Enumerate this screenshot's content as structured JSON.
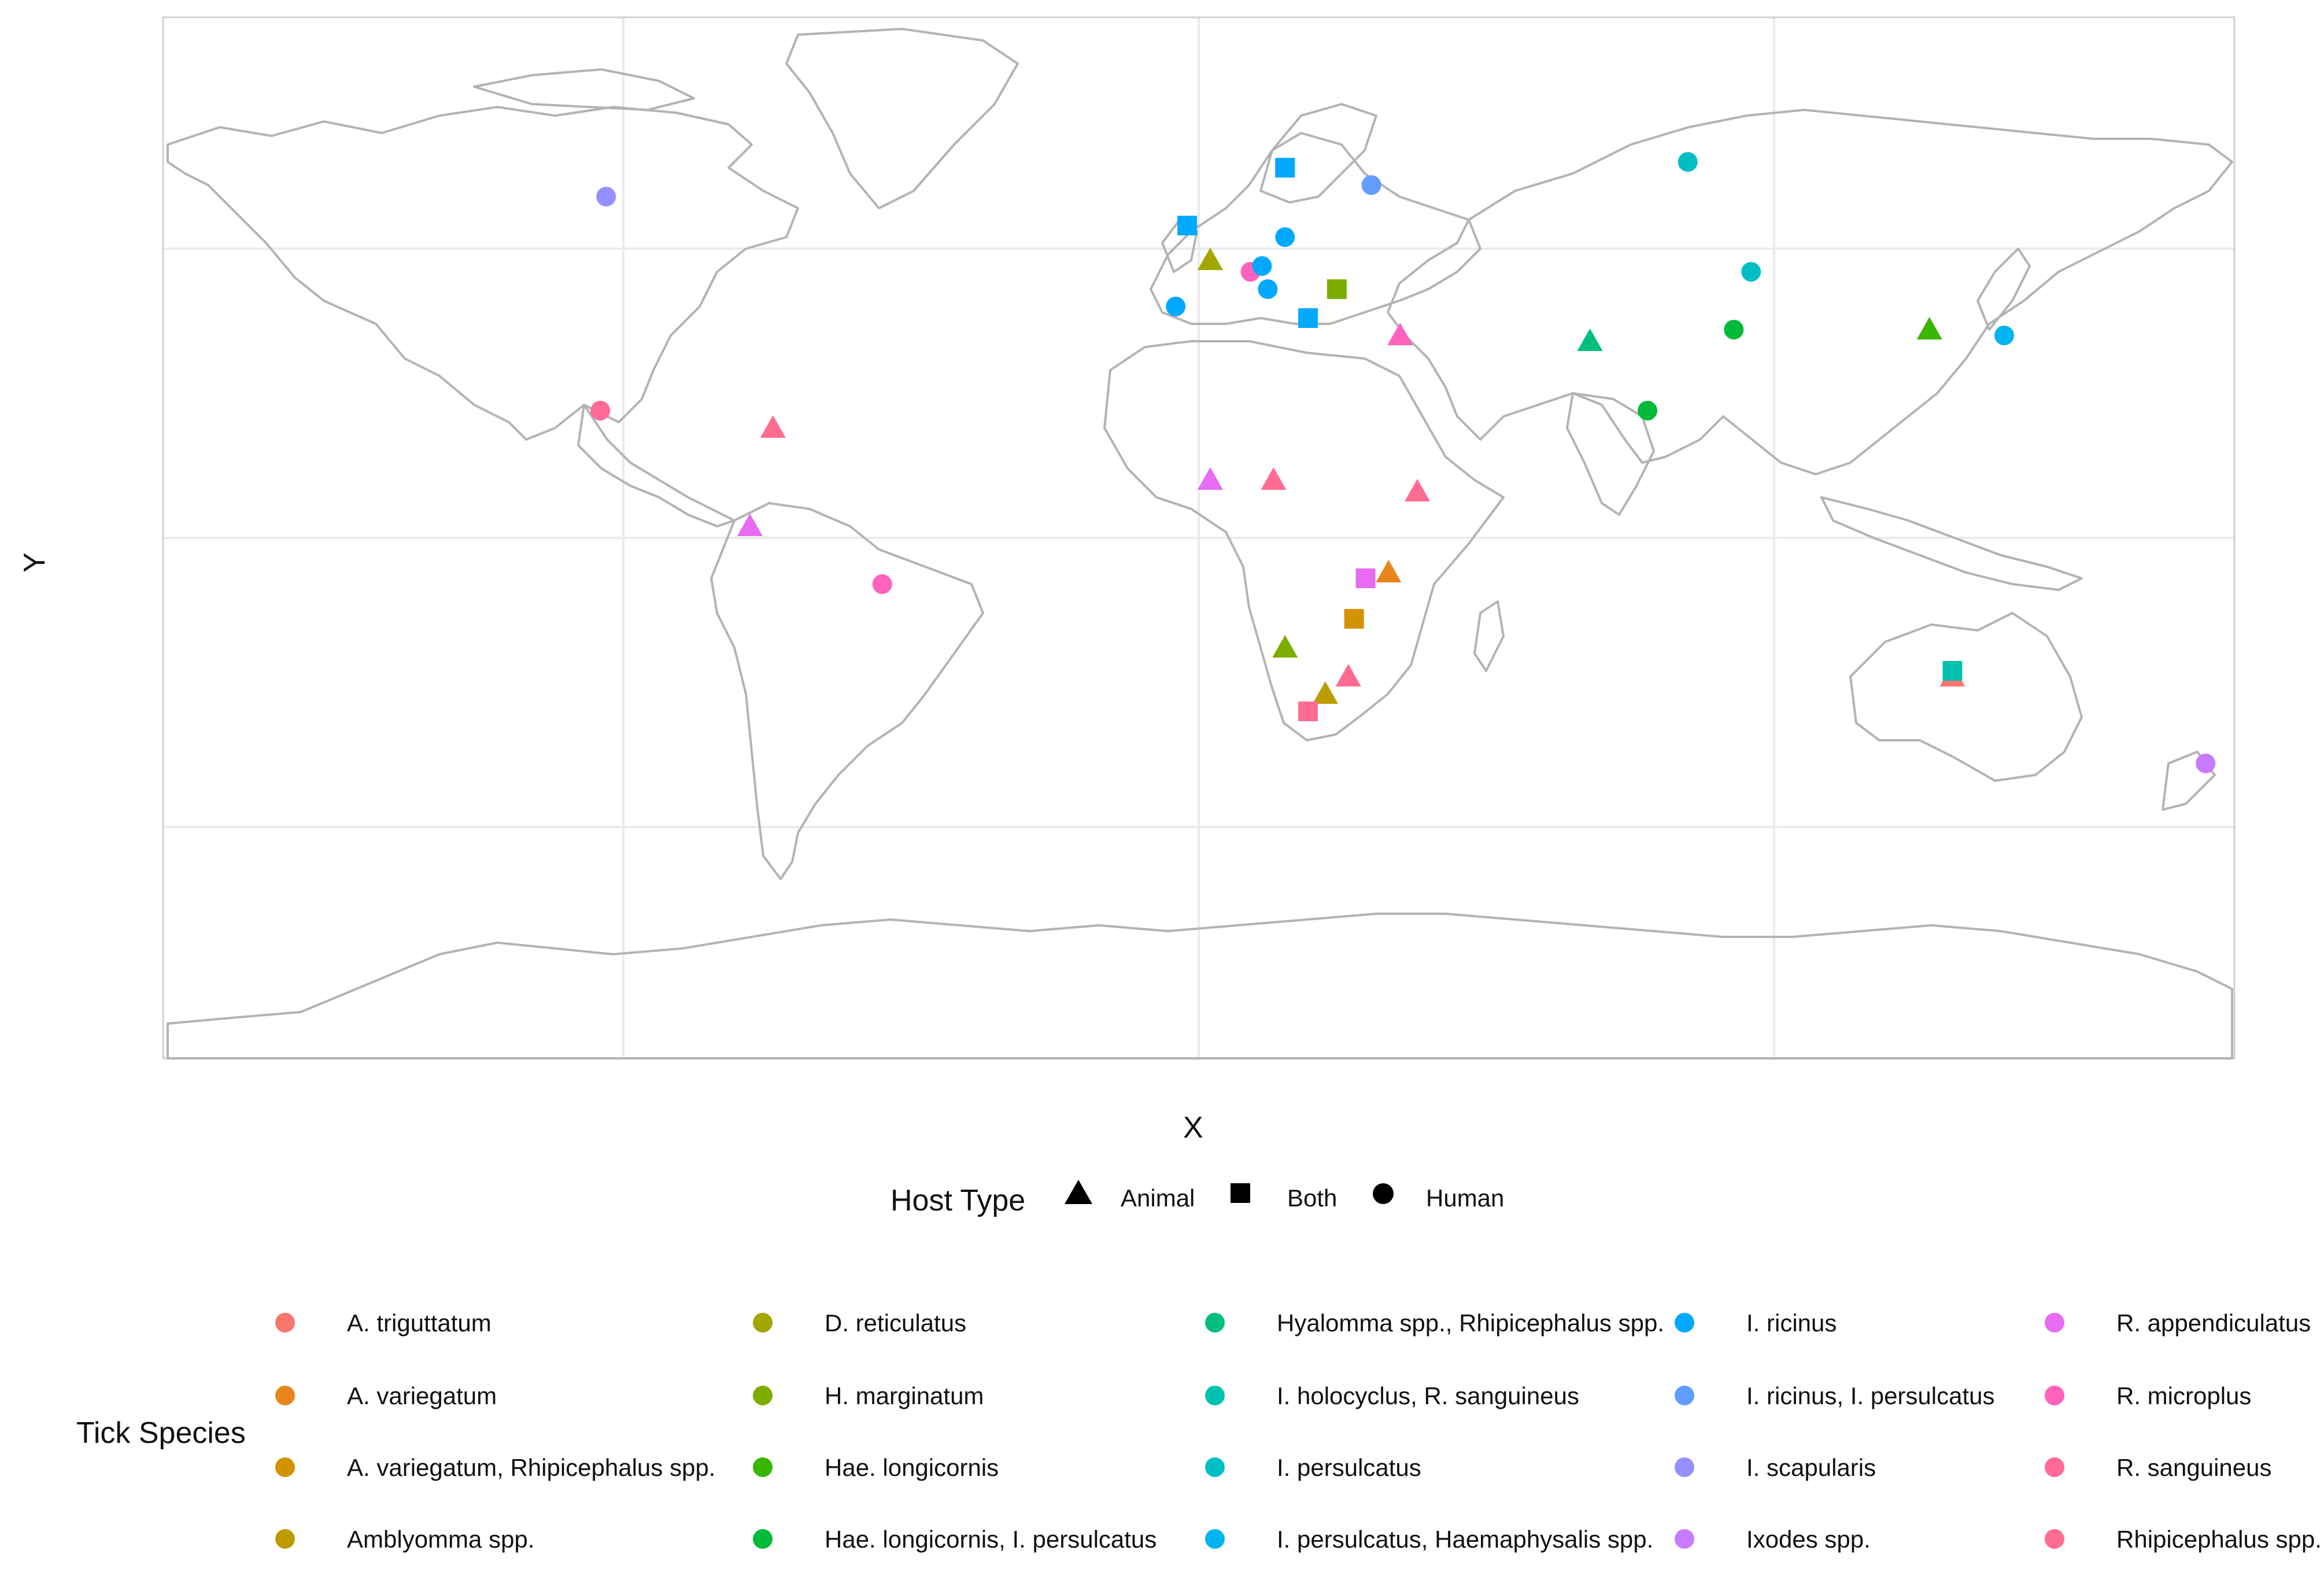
{
  "axes": {
    "x_label": "X",
    "y_label": "Y"
  },
  "host_legend": {
    "title": "Host Type",
    "items": [
      {
        "label": "Animal",
        "shape": "triangle"
      },
      {
        "label": "Both",
        "shape": "square"
      },
      {
        "label": "Human",
        "shape": "circle"
      }
    ]
  },
  "species_legend": {
    "title": "Tick Species",
    "items": [
      {
        "label": "A. triguttatum",
        "color": "#F8766D"
      },
      {
        "label": "A. variegatum",
        "color": "#E7861B"
      },
      {
        "label": "A. variegatum, Rhipicephalus spp.",
        "color": "#D39200"
      },
      {
        "label": "Amblyomma spp.",
        "color": "#BE9C00"
      },
      {
        "label": "D. reticulatus",
        "color": "#A3A500"
      },
      {
        "label": "H. marginatum",
        "color": "#7CAE00"
      },
      {
        "label": "Hae. longicornis",
        "color": "#39B600"
      },
      {
        "label": "Hae. longicornis, I. persulcatus",
        "color": "#00BA38"
      },
      {
        "label": "Hyalomma spp., Rhipicephalus spp.",
        "color": "#00BF7D"
      },
      {
        "label": "I. holocyclus, R. sanguineus",
        "color": "#00C0AF"
      },
      {
        "label": "I. persulcatus",
        "color": "#00BFC4"
      },
      {
        "label": "I. persulcatus, Haemaphysalis spp.",
        "color": "#00B4EF"
      },
      {
        "label": "I. ricinus",
        "color": "#00A9FF"
      },
      {
        "label": "I. ricinus, I. persulcatus",
        "color": "#619CFF"
      },
      {
        "label": "I. scapularis",
        "color": "#9590FF"
      },
      {
        "label": "Ixodes spp.",
        "color": "#C77CFF"
      },
      {
        "label": "R. appendiculatus",
        "color": "#E76BF3"
      },
      {
        "label": "R. microplus",
        "color": "#FF62BC"
      },
      {
        "label": "R. sanguineus",
        "color": "#FF6A98"
      },
      {
        "label": "Rhipicephalus spp.",
        "color": "#FF6C91"
      }
    ]
  },
  "map_points": [
    {
      "lon": -103,
      "lat": 59,
      "host": "Human",
      "species": "I. scapularis"
    },
    {
      "lon": -104,
      "lat": 22,
      "host": "Human",
      "species": "R. sanguineus"
    },
    {
      "lon": -74,
      "lat": 19,
      "host": "Animal",
      "species": "Rhipicephalus spp."
    },
    {
      "lon": -78,
      "lat": 2,
      "host": "Animal",
      "species": "R. appendiculatus"
    },
    {
      "lon": -55,
      "lat": -8,
      "host": "Human",
      "species": "R. microplus"
    },
    {
      "lon": -2,
      "lat": 54,
      "host": "Both",
      "species": "I. ricinus"
    },
    {
      "lon": 2,
      "lat": 48,
      "host": "Animal",
      "species": "D. reticulatus"
    },
    {
      "lon": -4,
      "lat": 40,
      "host": "Human",
      "species": "I. ricinus"
    },
    {
      "lon": 9,
      "lat": 46,
      "host": "Human",
      "species": "R. microplus"
    },
    {
      "lon": 11,
      "lat": 47,
      "host": "Human",
      "species": "I. ricinus"
    },
    {
      "lon": 12,
      "lat": 43,
      "host": "Human",
      "species": "I. ricinus"
    },
    {
      "lon": 15,
      "lat": 52,
      "host": "Human",
      "species": "I. ricinus"
    },
    {
      "lon": 15,
      "lat": 64,
      "host": "Both",
      "species": "I. ricinus"
    },
    {
      "lon": 30,
      "lat": 61,
      "host": "Human",
      "species": "I. ricinus, I. persulcatus"
    },
    {
      "lon": 24,
      "lat": 43,
      "host": "Both",
      "species": "H. marginatum"
    },
    {
      "lon": 19,
      "lat": 38,
      "host": "Both",
      "species": "I. ricinus"
    },
    {
      "lon": 35,
      "lat": 35,
      "host": "Animal",
      "species": "R. microplus"
    },
    {
      "lon": 85,
      "lat": 65,
      "host": "Human",
      "species": "I. persulcatus"
    },
    {
      "lon": 96,
      "lat": 46,
      "host": "Human",
      "species": "I. persulcatus"
    },
    {
      "lon": 93,
      "lat": 36,
      "host": "Human",
      "species": "Hae. longicornis, I. persulcatus"
    },
    {
      "lon": 127,
      "lat": 36,
      "host": "Animal",
      "species": "Hae. longicornis"
    },
    {
      "lon": 140,
      "lat": 35,
      "host": "Human",
      "species": "I. persulcatus, Haemaphysalis spp."
    },
    {
      "lon": 68,
      "lat": 34,
      "host": "Animal",
      "species": "Hyalomma spp., Rhipicephalus spp."
    },
    {
      "lon": 78,
      "lat": 22,
      "host": "Human",
      "species": "Hae. longicornis, I. persulcatus"
    },
    {
      "lon": 2,
      "lat": 10,
      "host": "Animal",
      "species": "R. appendiculatus"
    },
    {
      "lon": 13,
      "lat": 10,
      "host": "Animal",
      "species": "Rhipicephalus spp."
    },
    {
      "lon": 38,
      "lat": 8,
      "host": "Animal",
      "species": "Rhipicephalus spp."
    },
    {
      "lon": 29,
      "lat": -7,
      "host": "Both",
      "species": "R. appendiculatus"
    },
    {
      "lon": 33,
      "lat": -6,
      "host": "Animal",
      "species": "A. variegatum"
    },
    {
      "lon": 27,
      "lat": -14,
      "host": "Both",
      "species": "A. variegatum, Rhipicephalus spp."
    },
    {
      "lon": 15,
      "lat": -19,
      "host": "Animal",
      "species": "H. marginatum"
    },
    {
      "lon": 26,
      "lat": -24,
      "host": "Animal",
      "species": "Rhipicephalus spp."
    },
    {
      "lon": 22,
      "lat": -27,
      "host": "Animal",
      "species": "Amblyomma spp."
    },
    {
      "lon": 19,
      "lat": -30,
      "host": "Both",
      "species": "Rhipicephalus spp."
    },
    {
      "lon": 131,
      "lat": -24,
      "host": "Animal",
      "species": "A. triguttatum"
    },
    {
      "lon": 131,
      "lat": -23,
      "host": "Both",
      "species": "I. holocyclus, R. sanguineus"
    },
    {
      "lon": 175,
      "lat": -39,
      "host": "Human",
      "species": "Ixodes spp."
    }
  ]
}
